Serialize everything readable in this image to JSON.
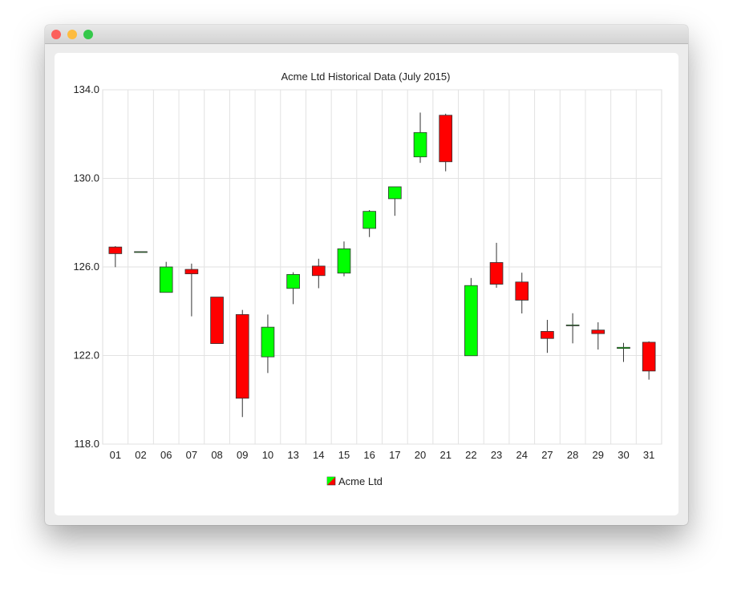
{
  "window": {
    "buttons": [
      {
        "name": "close",
        "color": "#fc605c"
      },
      {
        "name": "minimize",
        "color": "#fdbc40"
      },
      {
        "name": "maximize",
        "color": "#34c84a"
      }
    ]
  },
  "chart_data": {
    "type": "candlestick",
    "title": "Acme Ltd Historical Data (July 2015)",
    "ylim": [
      118,
      134
    ],
    "yticks": [
      "118.0",
      "122.0",
      "126.0",
      "130.0",
      "134.0"
    ],
    "grid": true,
    "legend_placement": "bottom",
    "increasing_color": "#00ff00",
    "decreasing_color": "#ff0000",
    "series": [
      {
        "name": "Acme Ltd",
        "categories": [
          "01",
          "02",
          "06",
          "07",
          "08",
          "09",
          "10",
          "13",
          "14",
          "15",
          "16",
          "17",
          "20",
          "21",
          "22",
          "23",
          "24",
          "27",
          "28",
          "29",
          "30",
          "31"
        ],
        "open": [
          126.9,
          126.69,
          124.85,
          125.89,
          124.64,
          123.85,
          121.94,
          125.03,
          126.04,
          125.72,
          127.74,
          129.08,
          130.97,
          132.85,
          121.99,
          126.2,
          125.32,
          123.09,
          123.38,
          123.15,
          122.32,
          122.6
        ],
        "high": [
          126.94,
          126.69,
          126.23,
          126.15,
          124.64,
          124.06,
          123.85,
          125.76,
          126.37,
          127.15,
          128.57,
          129.62,
          132.97,
          132.92,
          125.5,
          127.09,
          125.74,
          123.61,
          123.91,
          123.5,
          122.57,
          122.64
        ],
        "low": [
          125.99,
          126.69,
          124.85,
          123.77,
          122.54,
          119.22,
          121.21,
          124.32,
          125.04,
          125.58,
          127.35,
          128.31,
          130.7,
          130.32,
          121.99,
          125.06,
          123.9,
          122.12,
          122.55,
          122.27,
          121.71,
          120.91
        ],
        "close": [
          126.6,
          126.69,
          126.0,
          125.69,
          122.54,
          120.07,
          123.28,
          125.66,
          125.61,
          126.82,
          128.51,
          129.62,
          132.07,
          130.75,
          125.16,
          125.22,
          124.5,
          122.77,
          123.38,
          122.99,
          122.37,
          121.3
        ]
      }
    ]
  }
}
